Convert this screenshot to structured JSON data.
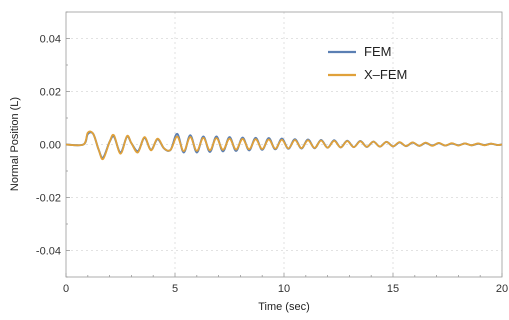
{
  "chart_data": {
    "type": "line",
    "title": "",
    "xlabel": "Time (sec)",
    "ylabel": "Normal Position (L)",
    "xlim": [
      0,
      20
    ],
    "ylim": [
      -0.05,
      0.05
    ],
    "x_ticks": [
      "0",
      "5",
      "10",
      "15",
      "20"
    ],
    "y_ticks": [
      "-0.04",
      "-0.02",
      "0.00",
      "0.02",
      "0.04"
    ],
    "grid": true,
    "legend_position": "top-right",
    "series": [
      {
        "name": "FEM",
        "color": "#5b7fb3",
        "x": [
          0,
          0.8,
          1.0,
          1.25,
          1.5,
          1.7,
          2.0,
          2.2,
          2.5,
          2.8,
          3.0,
          3.3,
          3.6,
          3.9,
          4.2,
          4.5,
          4.8,
          5.1,
          5.4,
          5.7,
          6.0,
          6.3,
          6.6,
          6.9,
          7.2,
          7.5,
          7.8,
          8.1,
          8.4,
          8.7,
          9.0,
          9.3,
          9.6,
          9.9,
          10.2,
          10.5,
          10.8,
          11.1,
          11.4,
          11.7,
          12.0,
          12.3,
          12.6,
          12.9,
          13.2,
          13.5,
          13.8,
          14.1,
          14.4,
          14.7,
          15.0,
          15.3,
          15.6,
          15.9,
          16.2,
          16.5,
          16.8,
          17.1,
          17.4,
          17.7,
          18.0,
          18.3,
          18.6,
          18.9,
          19.2,
          19.5,
          19.8,
          20.0
        ],
        "y": [
          0,
          0.0,
          0.004,
          0.004,
          -0.002,
          -0.005,
          0.001,
          0.003,
          -0.003,
          0.003,
          0.0005,
          -0.0025,
          0.0025,
          -0.002,
          0.002,
          -0.0015,
          -0.002,
          0.004,
          -0.003,
          0.0035,
          -0.003,
          0.003,
          -0.0028,
          0.003,
          -0.0026,
          0.0028,
          -0.0024,
          0.0026,
          -0.0022,
          0.0025,
          -0.002,
          0.0024,
          -0.0018,
          0.0022,
          -0.0016,
          0.002,
          -0.0015,
          0.0019,
          -0.0014,
          0.0017,
          -0.0012,
          0.0016,
          -0.0011,
          0.0014,
          -0.001,
          0.0013,
          -0.0009,
          0.0011,
          -0.0008,
          0.001,
          -0.0007,
          0.0008,
          -0.0006,
          0.0007,
          -0.0005,
          0.0006,
          -0.0004,
          0.0005,
          -0.0004,
          0.0004,
          -0.0003,
          0.0004,
          -0.0003,
          0.0003,
          -0.0002,
          0.0003,
          -0.0002,
          0.0
        ]
      },
      {
        "name": "X–FEM",
        "color": "#e0a13a",
        "x": [
          0,
          0.8,
          1.0,
          1.25,
          1.5,
          1.7,
          2.0,
          2.2,
          2.5,
          2.8,
          3.0,
          3.3,
          3.6,
          3.9,
          4.2,
          4.5,
          4.8,
          5.1,
          5.4,
          5.7,
          6.0,
          6.3,
          6.6,
          6.9,
          7.2,
          7.5,
          7.8,
          8.1,
          8.4,
          8.7,
          9.0,
          9.3,
          9.6,
          9.9,
          10.2,
          10.5,
          10.8,
          11.1,
          11.4,
          11.7,
          12.0,
          12.3,
          12.6,
          12.9,
          13.2,
          13.5,
          13.8,
          14.1,
          14.4,
          14.7,
          15.0,
          15.3,
          15.6,
          15.9,
          16.2,
          16.5,
          16.8,
          17.1,
          17.4,
          17.7,
          18.0,
          18.3,
          18.6,
          18.9,
          19.2,
          19.5,
          19.8,
          20.0
        ],
        "y": [
          0,
          0.0,
          0.0045,
          0.004,
          -0.002,
          -0.0055,
          0.001,
          0.0035,
          -0.0035,
          0.0032,
          0.0005,
          -0.003,
          0.0028,
          -0.0022,
          0.0022,
          -0.0015,
          -0.002,
          0.003,
          -0.0025,
          0.0028,
          -0.0024,
          0.0025,
          -0.0022,
          0.0024,
          -0.002,
          0.0022,
          -0.0019,
          0.0021,
          -0.0018,
          0.002,
          -0.0017,
          0.0019,
          -0.0016,
          0.0018,
          -0.0015,
          0.0017,
          -0.0014,
          0.0016,
          -0.0013,
          0.0015,
          -0.0012,
          0.0014,
          -0.0011,
          0.0013,
          -0.001,
          0.0012,
          -0.0009,
          0.0011,
          -0.0008,
          0.001,
          -0.0007,
          0.0009,
          -0.0006,
          0.0008,
          -0.0005,
          0.0007,
          -0.0005,
          0.0006,
          -0.0004,
          0.0005,
          -0.0004,
          0.0004,
          -0.0003,
          0.0004,
          -0.0003,
          0.0003,
          -0.0002,
          0.0
        ]
      }
    ]
  }
}
